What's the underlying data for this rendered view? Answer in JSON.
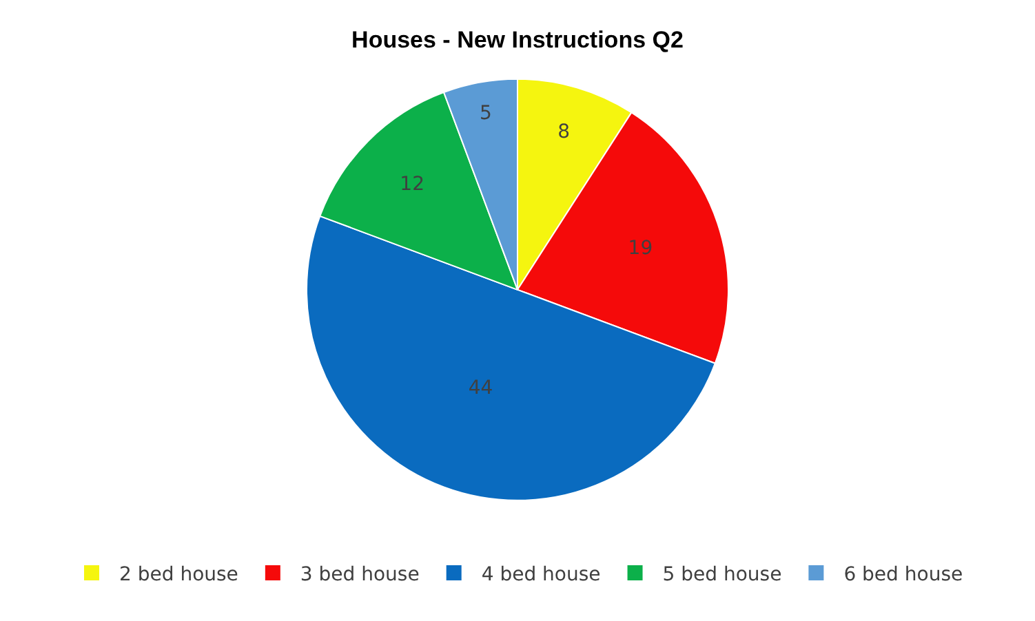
{
  "chart_data": {
    "type": "pie",
    "title": "Houses - New Instructions Q2",
    "categories": [
      "2 bed house",
      "3 bed house",
      "4 bed house",
      "5 bed house",
      "6 bed house"
    ],
    "values": [
      8,
      19,
      44,
      12,
      5
    ],
    "colors": [
      "#f5f50f",
      "#f50a0a",
      "#0a6bbf",
      "#0cb04a",
      "#5b9bd5"
    ],
    "data_labels": true,
    "legend": "bottom"
  }
}
